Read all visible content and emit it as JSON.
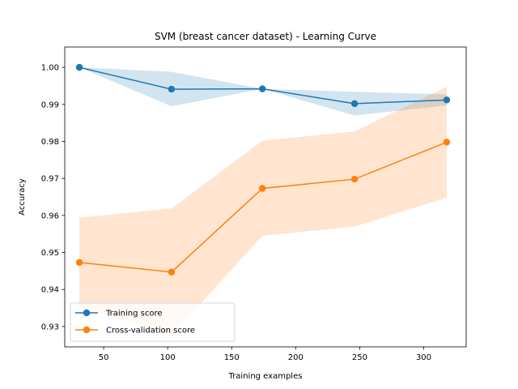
{
  "chart_data": {
    "type": "line",
    "title": "SVM (breast cancer dataset) - Learning Curve",
    "xlabel": "Training examples",
    "ylabel": "Accuracy",
    "xlim": [
      19.6,
      333.2
    ],
    "ylim": [
      0.9245,
      1.0055
    ],
    "xticks": [
      50,
      100,
      150,
      200,
      250,
      300
    ],
    "yticks": [
      0.93,
      0.94,
      0.95,
      0.96,
      0.97,
      0.98,
      0.99,
      1.0
    ],
    "ytick_labels": [
      "0.93",
      "0.94",
      "0.95",
      "0.96",
      "0.97",
      "0.98",
      "0.99",
      "1.00"
    ],
    "x": [
      31,
      103,
      174,
      246,
      318
    ],
    "legend_placement": "lower-left",
    "grid": false,
    "series": [
      {
        "name": "Training score",
        "color": "#1f77b4",
        "band_color": "#1f77b4",
        "values": [
          1.0,
          0.9941,
          0.9942,
          0.9902,
          0.9912
        ],
        "lower": [
          1.0,
          0.9895,
          0.9942,
          0.987,
          0.9897
        ],
        "upper": [
          1.0,
          0.9988,
          0.9942,
          0.9934,
          0.9927
        ]
      },
      {
        "name": "Cross-validation score",
        "color": "#ff7f0e",
        "band_color": "#ff7f0e",
        "values": [
          0.9473,
          0.9447,
          0.9673,
          0.9698,
          0.9798
        ],
        "lower": [
          0.9352,
          0.9276,
          0.9545,
          0.957,
          0.9648
        ],
        "upper": [
          0.9594,
          0.9619,
          0.9802,
          0.9827,
          0.9948
        ]
      }
    ]
  }
}
